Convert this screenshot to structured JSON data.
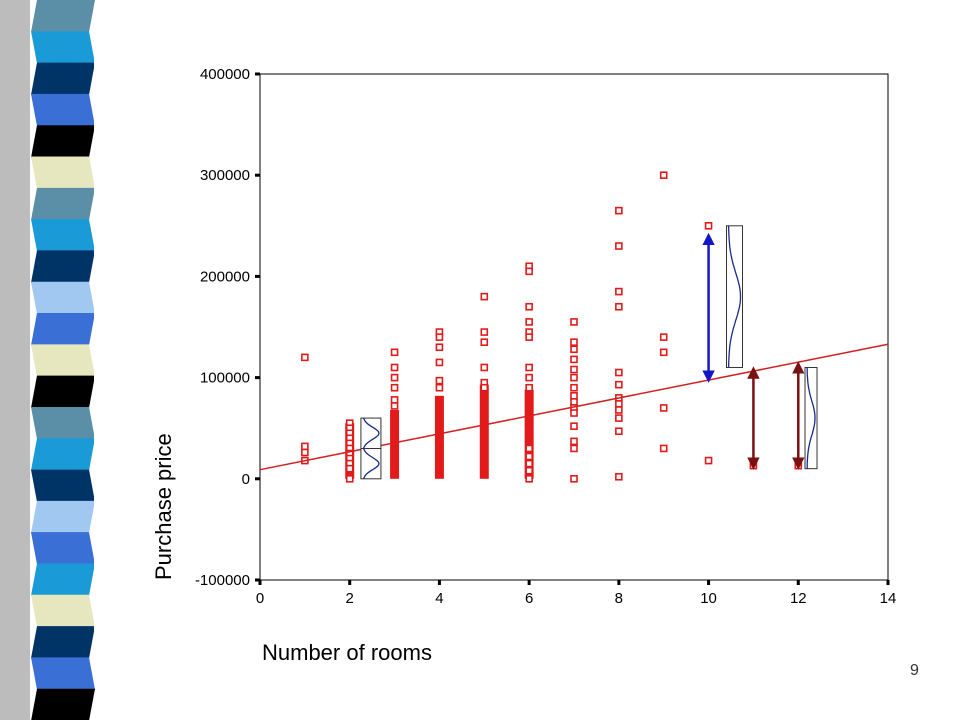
{
  "slide": {
    "page_number": "9",
    "strip_colors": [
      "#5b8fa8",
      "#1a9bd7",
      "#003366",
      "#3a6fd6",
      "#000000",
      "#e6e6bf",
      "#5b8fa8",
      "#1a9bd7",
      "#003366",
      "#a0c8f0",
      "#3a6fd6",
      "#e6e6bf",
      "#000000",
      "#5b8fa8",
      "#1a9bd7",
      "#003366",
      "#a0c8f0",
      "#3a6fd6",
      "#1a9bd7",
      "#e6e6bf",
      "#003366",
      "#3a6fd6",
      "#000000"
    ]
  },
  "chart_data": {
    "type": "scatter",
    "xlabel": "Number of rooms",
    "ylabel": "Purchase price",
    "xlim": [
      0,
      14
    ],
    "ylim": [
      -100000,
      400000
    ],
    "x_ticks": [
      "0",
      "2",
      "4",
      "6",
      "8",
      "10",
      "12",
      "14"
    ],
    "y_ticks": [
      "-100000",
      "0",
      "100000",
      "200000",
      "300000",
      "400000"
    ],
    "grid": false,
    "points": [
      [
        1,
        120000
      ],
      [
        1,
        32000
      ],
      [
        1,
        26000
      ],
      [
        1,
        18000
      ],
      [
        2,
        55000
      ],
      [
        2,
        50000
      ],
      [
        2,
        45000
      ],
      [
        2,
        40000
      ],
      [
        2,
        35000
      ],
      [
        2,
        30000
      ],
      [
        2,
        25000
      ],
      [
        2,
        20000
      ],
      [
        2,
        15000
      ],
      [
        2,
        10000
      ],
      [
        2,
        0
      ],
      [
        3,
        125000
      ],
      [
        3,
        110000
      ],
      [
        3,
        100000
      ],
      [
        3,
        90000
      ],
      [
        3,
        78000
      ],
      [
        3,
        72000
      ],
      [
        4,
        145000
      ],
      [
        4,
        140000
      ],
      [
        4,
        130000
      ],
      [
        4,
        115000
      ],
      [
        4,
        97000
      ],
      [
        4,
        90000
      ],
      [
        5,
        180000
      ],
      [
        5,
        145000
      ],
      [
        5,
        135000
      ],
      [
        5,
        110000
      ],
      [
        5,
        95000
      ],
      [
        5,
        90000
      ],
      [
        6,
        210000
      ],
      [
        6,
        205000
      ],
      [
        6,
        170000
      ],
      [
        6,
        155000
      ],
      [
        6,
        145000
      ],
      [
        6,
        140000
      ],
      [
        6,
        110000
      ],
      [
        6,
        100000
      ],
      [
        6,
        90000
      ],
      [
        6,
        30000
      ],
      [
        6,
        22000
      ],
      [
        6,
        15000
      ],
      [
        6,
        8000
      ],
      [
        6,
        0
      ],
      [
        7,
        155000
      ],
      [
        7,
        135000
      ],
      [
        7,
        128000
      ],
      [
        7,
        118000
      ],
      [
        7,
        108000
      ],
      [
        7,
        100000
      ],
      [
        7,
        90000
      ],
      [
        7,
        82000
      ],
      [
        7,
        76000
      ],
      [
        7,
        70000
      ],
      [
        7,
        65000
      ],
      [
        7,
        52000
      ],
      [
        7,
        37000
      ],
      [
        7,
        30000
      ],
      [
        7,
        0
      ],
      [
        8,
        265000
      ],
      [
        8,
        230000
      ],
      [
        8,
        185000
      ],
      [
        8,
        170000
      ],
      [
        8,
        105000
      ],
      [
        8,
        93000
      ],
      [
        8,
        80000
      ],
      [
        8,
        74000
      ],
      [
        8,
        68000
      ],
      [
        8,
        60000
      ],
      [
        8,
        47000
      ],
      [
        8,
        2000
      ],
      [
        9,
        300000
      ],
      [
        9,
        140000
      ],
      [
        9,
        125000
      ],
      [
        9,
        70000
      ],
      [
        9,
        30000
      ],
      [
        10,
        250000
      ],
      [
        10,
        18000
      ],
      [
        11,
        13000
      ],
      [
        12,
        13000
      ]
    ],
    "solid_columns": [
      {
        "x": 2,
        "y_min": 0,
        "y_max": 55000
      },
      {
        "x": 3,
        "y_min": 0,
        "y_max": 68000
      },
      {
        "x": 4,
        "y_min": 0,
        "y_max": 82000
      },
      {
        "x": 5,
        "y_min": 0,
        "y_max": 93000
      },
      {
        "x": 6,
        "y_min": 0,
        "y_max": 88000
      }
    ],
    "regression_line": {
      "x": [
        0,
        14
      ],
      "y": [
        9000,
        133000
      ]
    },
    "residual_arrows": [
      {
        "x": 10,
        "y_from": 101000,
        "y_to": 237000,
        "color": "#1515c8"
      },
      {
        "x": 11,
        "y_from": 15000,
        "y_to": 105000,
        "color": "#7a1010"
      },
      {
        "x": 12,
        "y_from": 15000,
        "y_to": 110000,
        "color": "#7a1010"
      }
    ],
    "colors": {
      "points": "#e31a1a",
      "line": "#d42020",
      "curve": "#1a2a8a"
    }
  }
}
